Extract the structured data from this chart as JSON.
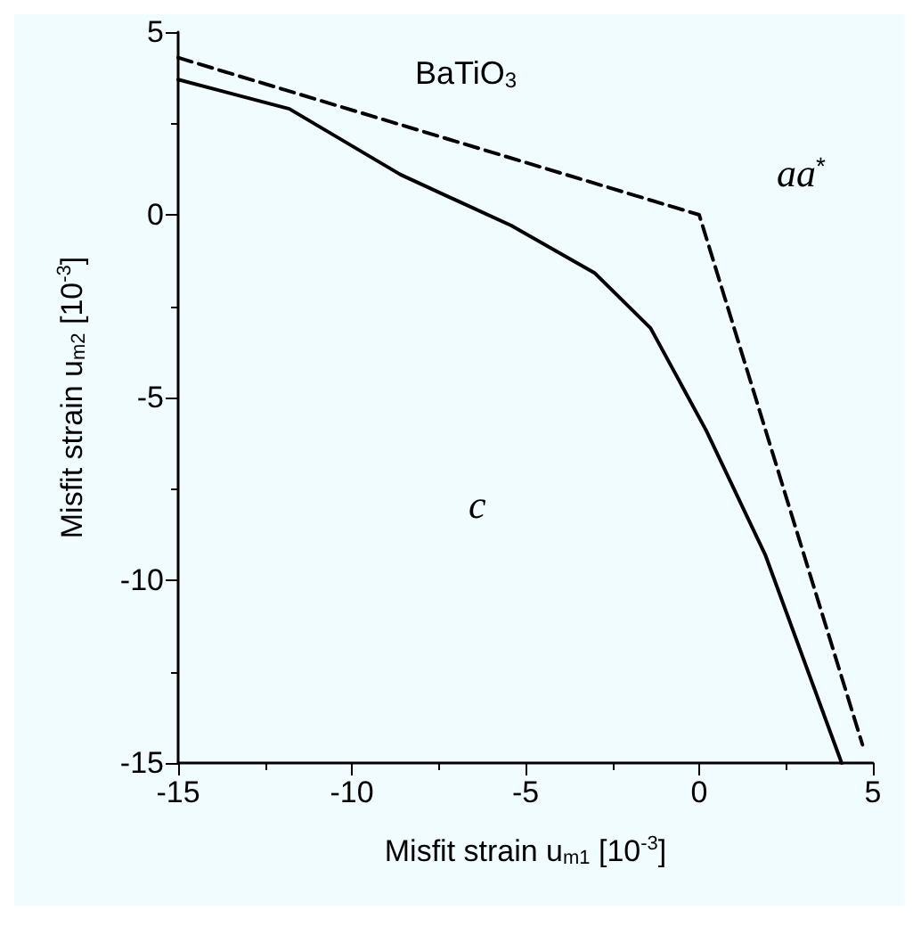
{
  "chart_data": {
    "type": "line",
    "xlabel": "Misfit strain u$_{m1}$ [10$^{-3}$]",
    "ylabel": "Misfit strain u$_{m2}$ [10$^{-3}$]",
    "xlim": [
      -15,
      5
    ],
    "ylim": [
      -15,
      5
    ],
    "xticks": [
      -15,
      -10,
      -5,
      0,
      5
    ],
    "yticks": [
      -15,
      -10,
      -5,
      0,
      5
    ],
    "grid": false,
    "marker": "none",
    "series": [
      {
        "color": "#000000",
        "line_style": "solid",
        "x": [
          -15,
          -11.8,
          -8.6,
          -5.4,
          -3,
          -1.4,
          0.2,
          1.9,
          4.1
        ],
        "values": [
          3.7,
          2.9,
          1.1,
          -0.3,
          -1.6,
          -3.1,
          -5.9,
          -9.3,
          -15
        ]
      },
      {
        "color": "#000000",
        "line_style": "dashed",
        "x": [
          -15,
          0,
          4.7
        ],
        "values": [
          4.3,
          0,
          -14.5
        ]
      }
    ],
    "annotations": [
      "BaTiO$_{3}$",
      "aa$^{*}$",
      "c"
    ]
  }
}
